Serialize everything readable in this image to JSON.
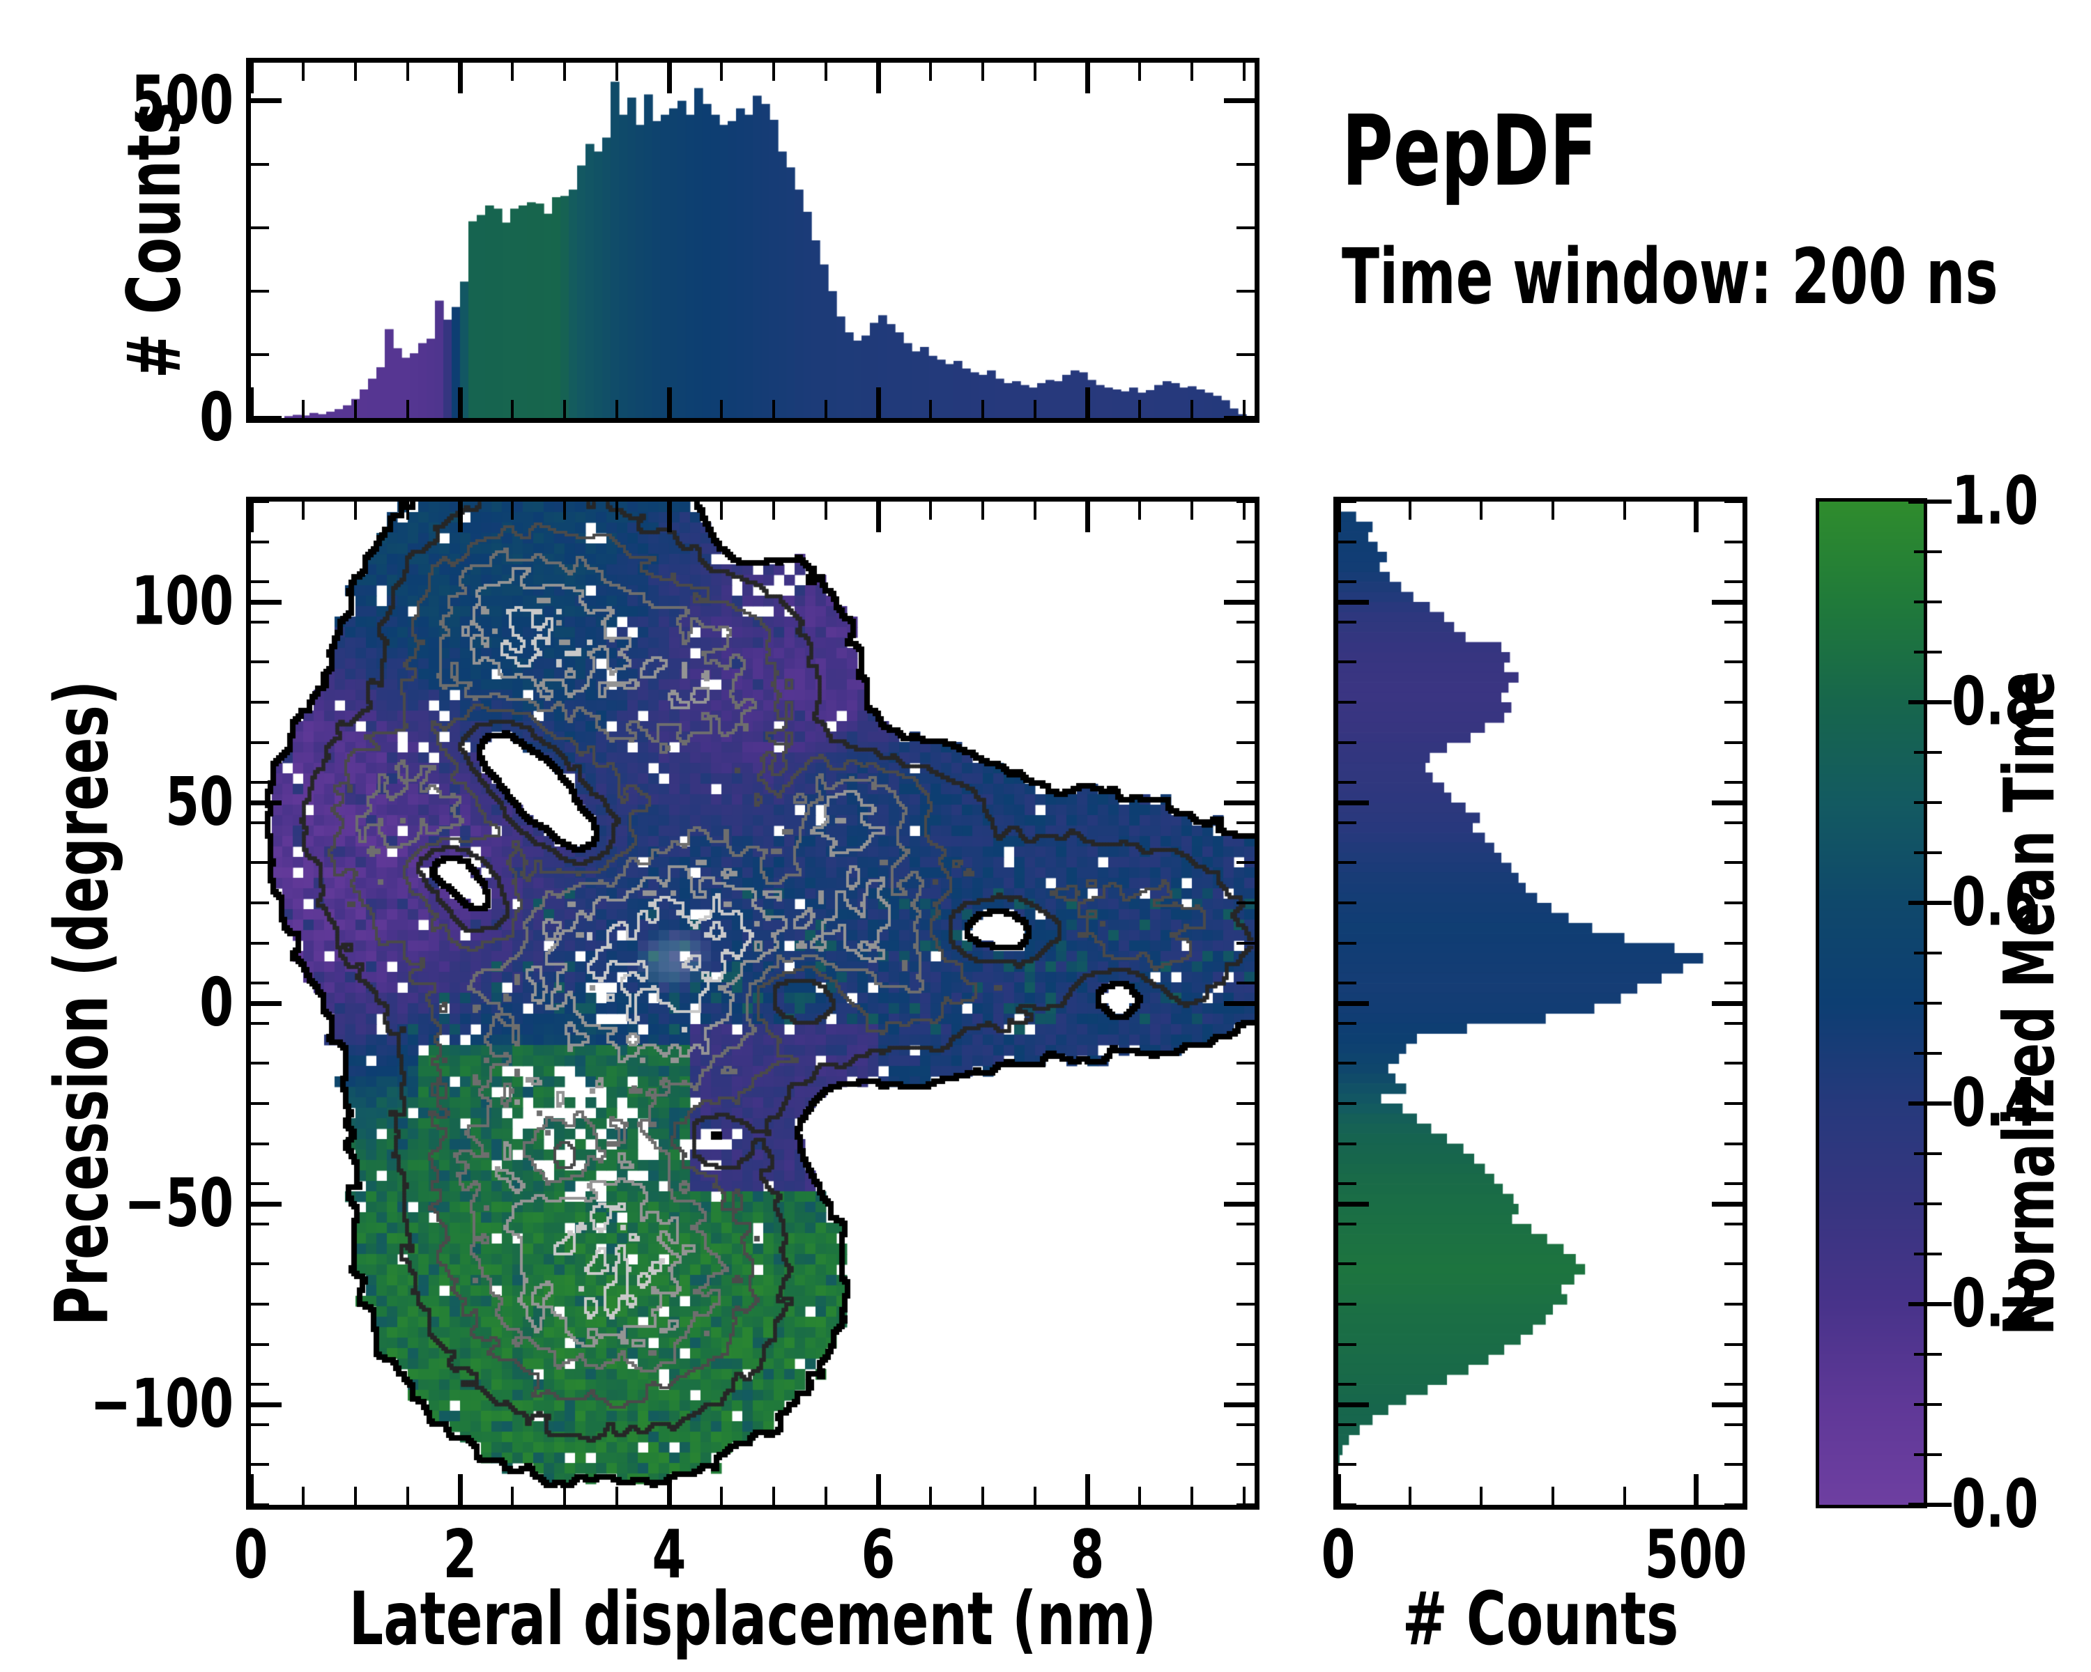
{
  "annotations": {
    "title": "PepDF",
    "subtitle": "Time window: 200 ns"
  },
  "colormap": {
    "stops": [
      [
        0,
        "#6e3fa1"
      ],
      [
        0.1,
        "#5f3897"
      ],
      [
        0.2,
        "#48338a"
      ],
      [
        0.3,
        "#373580"
      ],
      [
        0.4,
        "#26397c"
      ],
      [
        0.5,
        "#0d3e72"
      ],
      [
        0.6,
        "#0f486b"
      ],
      [
        0.7,
        "#135a61"
      ],
      [
        0.8,
        "#17664c"
      ],
      [
        0.9,
        "#207a3a"
      ],
      [
        1,
        "#2f8c2d"
      ]
    ]
  },
  "axes": {
    "main": {
      "xlabel": "Lateral displacement (nm)",
      "ylabel": "Precession (degrees)",
      "xlim": [
        0,
        9.6
      ],
      "ylim": [
        -125,
        125
      ],
      "xticks": [
        {
          "v": 0,
          "label": "0"
        },
        {
          "v": 2,
          "label": "2"
        },
        {
          "v": 4,
          "label": "4"
        },
        {
          "v": 6,
          "label": "6"
        },
        {
          "v": 8,
          "label": "8"
        }
      ],
      "xminor_step": 0.5,
      "yticks": [
        {
          "v": 100,
          "label": "100"
        },
        {
          "v": 50,
          "label": "50"
        },
        {
          "v": 0,
          "label": "0"
        },
        {
          "v": -50,
          "label": "−50"
        },
        {
          "v": -100,
          "label": "−100"
        }
      ],
      "yminor_step": 10
    },
    "top": {
      "ylabel": "# Counts",
      "ylim": [
        0,
        560
      ],
      "yticks": [
        {
          "v": 0,
          "label": "0"
        },
        {
          "v": 500,
          "label": "500"
        }
      ],
      "yminor_step": 100
    },
    "right": {
      "xlabel": "# Counts",
      "xlim": [
        0,
        565
      ],
      "xticks": [
        {
          "v": 0,
          "label": "0"
        },
        {
          "v": 500,
          "label": "500"
        }
      ],
      "xminor_step": 100
    },
    "cbar": {
      "label": "Normalized Mean Time",
      "lim": [
        0,
        1
      ],
      "ticks": [
        {
          "v": 0,
          "label": "0.0"
        },
        {
          "v": 0.2,
          "label": "0.2"
        },
        {
          "v": 0.4,
          "label": "0.4"
        },
        {
          "v": 0.6,
          "label": "0.6"
        },
        {
          "v": 0.8,
          "label": "0.8"
        },
        {
          "v": 1,
          "label": "1.0"
        }
      ],
      "minor_step": 0.05
    }
  },
  "chart_data": [
    {
      "id": "top_histogram",
      "type": "bar",
      "ylabel": "# Counts",
      "x_start": 0.32,
      "bin_width": 0.08,
      "xlim": [
        0,
        9.6
      ],
      "ylim": [
        0,
        560
      ],
      "values": [
        3,
        5,
        4,
        8,
        6,
        10,
        14,
        20,
        30,
        45,
        62,
        80,
        140,
        110,
        95,
        102,
        118,
        125,
        185,
        155,
        175,
        215,
        310,
        320,
        335,
        330,
        308,
        330,
        335,
        340,
        338,
        322,
        348,
        350,
        360,
        398,
        432,
        420,
        442,
        530,
        478,
        505,
        462,
        510,
        468,
        478,
        488,
        500,
        478,
        520,
        495,
        478,
        462,
        468,
        488,
        478,
        508,
        495,
        470,
        420,
        395,
        360,
        325,
        280,
        242,
        200,
        160,
        135,
        122,
        130,
        150,
        162,
        148,
        135,
        118,
        105,
        112,
        98,
        92,
        85,
        90,
        78,
        72,
        68,
        75,
        62,
        55,
        58,
        52,
        48,
        55,
        60,
        58,
        68,
        75,
        72,
        60,
        52,
        48,
        45,
        42,
        48,
        40,
        44,
        52,
        58,
        55,
        48,
        50,
        45,
        40,
        35,
        28,
        15,
        6
      ],
      "color_value_stops": [
        [
          0.3,
          0.13
        ],
        [
          1.5,
          0.14
        ],
        [
          1.8,
          0.17
        ],
        [
          1.92,
          0.38
        ],
        [
          2.0,
          0.62
        ],
        [
          2.1,
          0.78
        ],
        [
          2.95,
          0.8
        ],
        [
          3.1,
          0.7
        ],
        [
          3.5,
          0.62
        ],
        [
          3.9,
          0.55
        ],
        [
          4.4,
          0.5
        ],
        [
          4.9,
          0.47
        ],
        [
          5.4,
          0.44
        ],
        [
          6.2,
          0.42
        ],
        [
          7.2,
          0.4
        ],
        [
          8.2,
          0.39
        ],
        [
          9.45,
          0.41
        ]
      ]
    },
    {
      "id": "main_heatmap",
      "type": "heatmap",
      "xlabel": "Lateral displacement (nm)",
      "ylabel": "Precession (degrees)",
      "xlim": [
        0,
        9.6
      ],
      "ylim": [
        -125,
        125
      ],
      "grid": [
        96,
        96
      ],
      "density_threshold": 0.13,
      "contour_levels": [
        0.13,
        0.3,
        0.47,
        0.64,
        0.81,
        0.98
      ],
      "contour_colors": [
        "#000000",
        "#262626",
        "#4a4a4a",
        "#6e6e6e",
        "#949494",
        "#c9c9c9"
      ],
      "contour_widths": [
        8,
        5,
        4,
        4,
        4,
        4
      ],
      "blobs": [
        [
          1.05,
          4.1,
          11,
          1.05,
          24,
          0.46
        ],
        [
          0.55,
          1.9,
          28,
          0.85,
          26,
          0.14
        ],
        [
          0.62,
          3.0,
          92,
          0.95,
          24,
          0.55
        ],
        [
          0.55,
          4.55,
          78,
          0.75,
          20,
          0.15
        ],
        [
          0.42,
          7.4,
          22,
          1.35,
          20,
          0.46
        ],
        [
          0.95,
          3.4,
          -68,
          1.15,
          26,
          0.9
        ],
        [
          0.4,
          2.45,
          -30,
          0.8,
          20,
          0.86
        ],
        [
          0.3,
          5.95,
          25,
          0.5,
          12,
          0.47
        ],
        [
          0.3,
          8.75,
          15,
          0.8,
          16,
          0.44
        ],
        [
          0.4,
          2.3,
          95,
          0.7,
          18,
          0.55
        ],
        [
          0.35,
          1.2,
          50,
          0.6,
          18,
          0.13
        ],
        [
          0.52,
          5.7,
          48,
          0.38,
          9,
          0.47
        ],
        [
          0.25,
          6.4,
          52,
          0.5,
          8,
          0.46
        ],
        [
          0.3,
          6.3,
          5,
          0.7,
          14,
          0.42
        ]
      ],
      "holes": [
        [
          -0.5,
          2.35,
          64,
          0.3,
          7
        ],
        [
          -0.5,
          2.75,
          52,
          0.3,
          8
        ],
        [
          -0.45,
          3.2,
          40,
          0.28,
          7
        ],
        [
          -0.6,
          1.85,
          34,
          0.28,
          5
        ],
        [
          -0.6,
          2.2,
          24,
          0.3,
          7
        ],
        [
          -0.6,
          5.2,
          2,
          0.35,
          6
        ],
        [
          -0.45,
          5.7,
          -32,
          0.25,
          7
        ],
        [
          -0.4,
          4.75,
          118,
          0.18,
          5
        ],
        [
          -0.55,
          7.1,
          18,
          0.5,
          6
        ],
        [
          -0.35,
          8.3,
          3,
          0.25,
          5
        ],
        [
          -0.4,
          3.0,
          -38,
          0.22,
          6
        ],
        [
          -0.35,
          4.4,
          -34,
          0.2,
          5
        ]
      ],
      "value_regions": [
        {
          "x": [
            4.15,
            6.0
          ],
          "y": [
            -48,
            -6
          ],
          "v": 0.3
        },
        {
          "x": [
            1.55,
            4.15
          ],
          "y": [
            -50,
            -11
          ],
          "v": 0.84
        }
      ],
      "density_noise": 0.3,
      "value_noise": 0.13,
      "dropout": 0.035,
      "dropout_zones": [
        [
          3.2,
          -35,
          0.7,
          14,
          0.35
        ],
        [
          4.4,
          -37,
          0.35,
          8,
          0.3
        ],
        [
          4.9,
          108,
          0.5,
          12,
          0.25
        ],
        [
          2.1,
          40,
          0.4,
          8,
          0.2
        ],
        [
          3.55,
          0,
          0.5,
          8,
          0.18
        ],
        [
          2.8,
          -22,
          0.5,
          8,
          0.25
        ]
      ],
      "teal_speckle": {
        "y_range": [
          -8,
          28
        ],
        "p": 0.13,
        "value": 0.62
      },
      "green_dapple": {
        "p": 0.18,
        "delta": -0.13
      },
      "purple_dapple": {
        "p": 0.08,
        "delta": 0.17
      }
    },
    {
      "id": "right_histogram",
      "type": "bar",
      "orientation": "horizontal",
      "xlabel": "# Counts",
      "y_start": 125,
      "bin_step": -2.5,
      "xlim": [
        0,
        565
      ],
      "ylim": [
        -125,
        125
      ],
      "values": [
        0,
        25,
        48,
        42,
        55,
        68,
        58,
        72,
        88,
        105,
        128,
        148,
        162,
        178,
        228,
        240,
        232,
        252,
        238,
        228,
        242,
        232,
        205,
        185,
        152,
        128,
        122,
        132,
        148,
        158,
        178,
        198,
        188,
        205,
        218,
        228,
        242,
        252,
        262,
        278,
        298,
        322,
        355,
        400,
        470,
        510,
        482,
        452,
        418,
        395,
        358,
        290,
        180,
        110,
        95,
        85,
        70,
        80,
        95,
        60,
        90,
        110,
        130,
        152,
        175,
        190,
        205,
        218,
        230,
        245,
        252,
        243,
        270,
        292,
        315,
        332,
        345,
        330,
        312,
        320,
        300,
        290,
        272,
        255,
        232,
        210,
        182,
        152,
        125,
        95,
        70,
        48,
        30,
        15,
        6,
        2,
        0,
        0,
        0,
        0
      ],
      "color_value_stops": [
        [
          -112,
          0.78
        ],
        [
          -100,
          0.8
        ],
        [
          -90,
          0.82
        ],
        [
          -78,
          0.84
        ],
        [
          -65,
          0.87
        ],
        [
          -55,
          0.85
        ],
        [
          -42,
          0.82
        ],
        [
          -32,
          0.78
        ],
        [
          -27,
          0.74
        ],
        [
          -23,
          0.68
        ],
        [
          -19,
          0.64
        ],
        [
          -15,
          0.58
        ],
        [
          -10,
          0.53
        ],
        [
          -4,
          0.49
        ],
        [
          5,
          0.47
        ],
        [
          20,
          0.49
        ],
        [
          32,
          0.46
        ],
        [
          40,
          0.42
        ],
        [
          46,
          0.38
        ],
        [
          55,
          0.35
        ],
        [
          63,
          0.33
        ],
        [
          70,
          0.3
        ],
        [
          78,
          0.28
        ],
        [
          88,
          0.3
        ],
        [
          97,
          0.35
        ],
        [
          103,
          0.42
        ],
        [
          110,
          0.48
        ],
        [
          125,
          0.5
        ]
      ]
    }
  ]
}
